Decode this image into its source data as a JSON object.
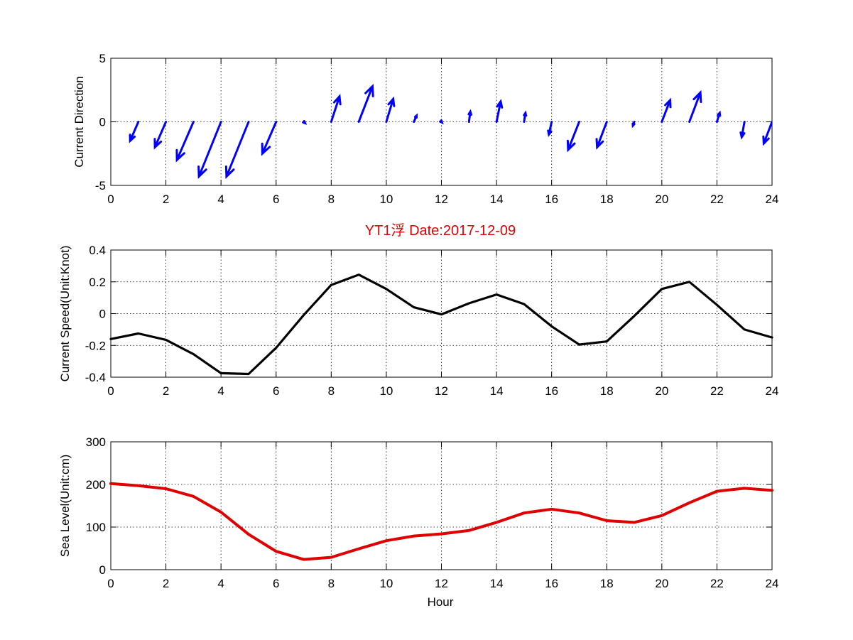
{
  "figure": {
    "title": "YT1浮    Date:2017-12-09",
    "xlabel": "Hour"
  },
  "chart_data": [
    {
      "type": "quiver",
      "ylabel": "Current Direction",
      "xlim": [
        0,
        24
      ],
      "ylim": [
        -5,
        5
      ],
      "xticks": [
        0,
        2,
        4,
        6,
        8,
        10,
        12,
        14,
        16,
        18,
        20,
        22,
        24
      ],
      "yticks": [
        5,
        0,
        -5
      ],
      "grid": true,
      "color": "#0000ff",
      "arrows": [
        {
          "x": 1,
          "u": -0.3,
          "v": -1.5
        },
        {
          "x": 2,
          "u": -0.4,
          "v": -2.0
        },
        {
          "x": 3,
          "u": -0.6,
          "v": -3.0
        },
        {
          "x": 4,
          "u": -0.8,
          "v": -4.3
        },
        {
          "x": 5,
          "u": -0.8,
          "v": -4.3
        },
        {
          "x": 6,
          "u": -0.5,
          "v": -2.5
        },
        {
          "x": 7,
          "u": 0.05,
          "v": -0.1
        },
        {
          "x": 8,
          "u": 0.3,
          "v": 2.0
        },
        {
          "x": 9,
          "u": 0.5,
          "v": 2.8
        },
        {
          "x": 10,
          "u": 0.25,
          "v": 1.8
        },
        {
          "x": 11,
          "u": 0.1,
          "v": 0.5
        },
        {
          "x": 12,
          "u": 0.02,
          "v": -0.05
        },
        {
          "x": 13,
          "u": 0.05,
          "v": 0.8
        },
        {
          "x": 14,
          "u": 0.15,
          "v": 1.6
        },
        {
          "x": 15,
          "u": 0.05,
          "v": 0.7
        },
        {
          "x": 16,
          "u": -0.1,
          "v": -1.0
        },
        {
          "x": 17,
          "u": -0.4,
          "v": -2.2
        },
        {
          "x": 18,
          "u": -0.35,
          "v": -2.0
        },
        {
          "x": 19,
          "u": -0.05,
          "v": -0.3
        },
        {
          "x": 20,
          "u": 0.3,
          "v": 1.7
        },
        {
          "x": 21,
          "u": 0.4,
          "v": 2.3
        },
        {
          "x": 22,
          "u": 0.1,
          "v": 0.7
        },
        {
          "x": 23,
          "u": -0.1,
          "v": -1.2
        },
        {
          "x": 24,
          "u": -0.3,
          "v": -1.7
        }
      ]
    },
    {
      "type": "line",
      "ylabel": "Current Speed(Unit:Knot)",
      "xlim": [
        0,
        24
      ],
      "ylim": [
        -0.4,
        0.4
      ],
      "xticks": [
        0,
        2,
        4,
        6,
        8,
        10,
        12,
        14,
        16,
        18,
        20,
        22,
        24
      ],
      "yticks": [
        0.4,
        0.2,
        0,
        -0.2,
        -0.4
      ],
      "ytick_labels": [
        "0.4",
        "0.2",
        "0",
        "-0.2",
        "-0.4"
      ],
      "grid": true,
      "color": "#000000",
      "x": [
        0,
        1,
        2,
        3,
        4,
        5,
        6,
        7,
        8,
        9,
        10,
        11,
        12,
        13,
        14,
        15,
        16,
        17,
        18,
        19,
        20,
        21,
        22,
        23,
        24
      ],
      "values": [
        -0.16,
        -0.125,
        -0.165,
        -0.255,
        -0.375,
        -0.38,
        -0.215,
        -0.01,
        0.18,
        0.245,
        0.155,
        0.04,
        -0.005,
        0.065,
        0.12,
        0.06,
        -0.08,
        -0.195,
        -0.175,
        -0.015,
        0.155,
        0.2,
        0.055,
        -0.1,
        -0.15
      ]
    },
    {
      "type": "line",
      "ylabel": "Sea Level(Unit:cm)",
      "xlim": [
        0,
        24
      ],
      "ylim": [
        0,
        300
      ],
      "xticks": [
        0,
        2,
        4,
        6,
        8,
        10,
        12,
        14,
        16,
        18,
        20,
        22,
        24
      ],
      "yticks": [
        300,
        200,
        100,
        0
      ],
      "grid": true,
      "color": "#e00000",
      "x": [
        0,
        1,
        2,
        3,
        4,
        5,
        6,
        7,
        8,
        9,
        10,
        11,
        12,
        13,
        14,
        15,
        16,
        17,
        18,
        19,
        20,
        21,
        22,
        23,
        24
      ],
      "values": [
        202,
        197,
        190,
        172,
        135,
        83,
        43,
        24,
        29,
        49,
        68,
        79,
        84,
        92,
        111,
        133,
        142,
        133,
        115,
        111,
        127,
        157,
        184,
        191,
        186
      ]
    }
  ]
}
